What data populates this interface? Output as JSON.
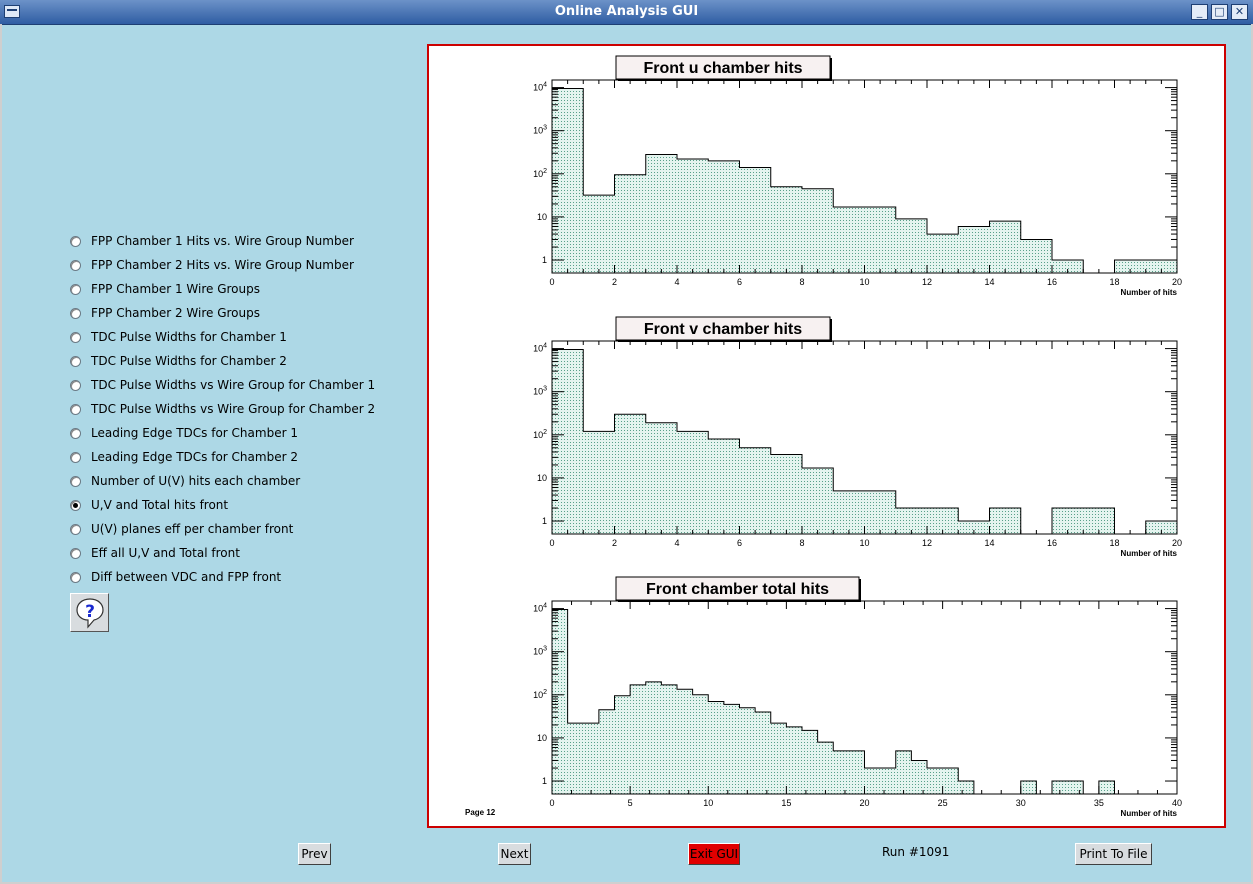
{
  "window": {
    "title": "Online Analysis GUI",
    "minimize_label": "_",
    "maximize_label": "□",
    "close_label": "✕"
  },
  "options": [
    {
      "label": "FPP Chamber 1 Hits vs. Wire Group Number",
      "checked": false
    },
    {
      "label": "FPP Chamber 2 Hits vs. Wire Group Number",
      "checked": false
    },
    {
      "label": "FPP Chamber 1 Wire Groups",
      "checked": false
    },
    {
      "label": "FPP Chamber 2 Wire Groups",
      "checked": false
    },
    {
      "label": "TDC Pulse Widths for Chamber 1",
      "checked": false
    },
    {
      "label": "TDC Pulse Widths for Chamber 2",
      "checked": false
    },
    {
      "label": "TDC Pulse Widths vs Wire Group for Chamber 1",
      "checked": false
    },
    {
      "label": "TDC Pulse Widths vs Wire Group for Chamber 2",
      "checked": false
    },
    {
      "label": "Leading Edge TDCs for Chamber 1",
      "checked": false
    },
    {
      "label": "Leading Edge TDCs for Chamber 2",
      "checked": false
    },
    {
      "label": "Number of U(V) hits each chamber",
      "checked": false
    },
    {
      "label": "U,V and Total hits front",
      "checked": true
    },
    {
      "label": "U(V) planes eff per chamber front",
      "checked": false
    },
    {
      "label": "Eff all U,V and Total front",
      "checked": false
    },
    {
      "label": "Diff between VDC and FPP front",
      "checked": false
    }
  ],
  "help_icon": "question-mark-speech-bubble-icon",
  "page_label": "Page 12",
  "buttons": {
    "prev": "Prev",
    "next": "Next",
    "exit": "Exit GUI",
    "print": "Print To File"
  },
  "run_label": "Run #1091",
  "colors": {
    "background": "#add8e6",
    "canvas_border": "#cc0000",
    "hist_fill": "#d9efe8",
    "exit_button": "#e00000"
  },
  "chart_data": [
    {
      "type": "bar",
      "title": "Front u chamber hits",
      "xlabel": "Number of hits",
      "xlim": [
        0,
        20
      ],
      "ylim": [
        0.5,
        15000
      ],
      "log_y": true,
      "x_ticks": [
        "0",
        "2",
        "4",
        "6",
        "8",
        "10",
        "12",
        "14",
        "16",
        "18",
        "20"
      ],
      "y_ticks": [
        "1",
        "10",
        "10^2",
        "10^3",
        "10^4"
      ],
      "bin_width": 1,
      "values": [
        9500,
        32,
        95,
        280,
        220,
        200,
        140,
        50,
        45,
        17,
        17,
        9,
        4,
        6,
        8,
        3,
        1,
        0,
        1,
        1
      ]
    },
    {
      "type": "bar",
      "title": "Front v chamber hits",
      "xlabel": "Number of hits",
      "xlim": [
        0,
        20
      ],
      "ylim": [
        0.5,
        15000
      ],
      "log_y": true,
      "x_ticks": [
        "0",
        "2",
        "4",
        "6",
        "8",
        "10",
        "12",
        "14",
        "16",
        "18",
        "20"
      ],
      "y_ticks": [
        "1",
        "10",
        "10^2",
        "10^3",
        "10^4"
      ],
      "bin_width": 1,
      "values": [
        9500,
        120,
        300,
        190,
        120,
        80,
        50,
        35,
        17,
        5,
        5,
        2,
        2,
        1,
        2,
        0,
        2,
        2,
        0,
        1
      ]
    },
    {
      "type": "bar",
      "title": "Front chamber total hits",
      "xlabel": "Number of hits",
      "xlim": [
        0,
        40
      ],
      "ylim": [
        0.5,
        15000
      ],
      "log_y": true,
      "x_ticks": [
        "0",
        "5",
        "10",
        "15",
        "20",
        "25",
        "30",
        "35",
        "40"
      ],
      "y_ticks": [
        "1",
        "10",
        "10^2",
        "10^3",
        "10^4"
      ],
      "bin_width": 1,
      "values": [
        9500,
        22,
        22,
        45,
        95,
        170,
        200,
        170,
        135,
        100,
        70,
        60,
        50,
        40,
        22,
        18,
        15,
        8,
        5,
        5,
        2,
        2,
        5,
        3,
        2,
        2,
        1,
        0,
        0,
        0,
        1,
        0,
        1,
        1,
        0,
        1,
        0,
        0,
        0,
        0
      ]
    }
  ]
}
